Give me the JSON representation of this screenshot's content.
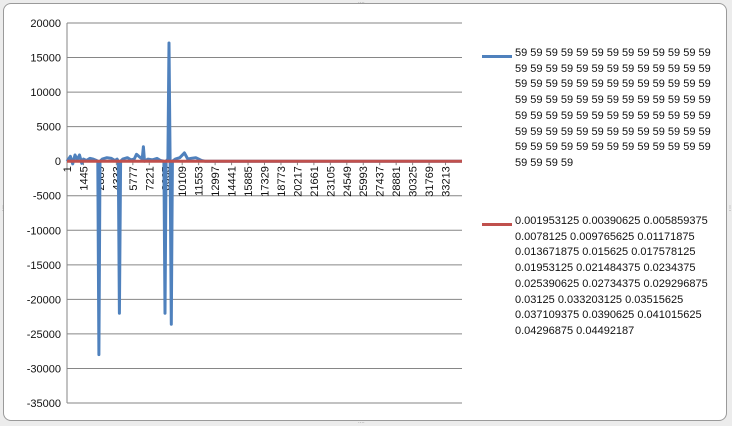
{
  "chart_data": {
    "type": "line",
    "y_ticks": [
      20000,
      15000,
      10000,
      5000,
      0,
      -5000,
      -10000,
      -15000,
      -20000,
      -25000,
      -30000,
      -35000
    ],
    "ylim": [
      -35000,
      20000
    ],
    "x_tick_labels": [
      "1",
      "1445",
      "2889",
      "4333",
      "5777",
      "7221",
      "8665",
      "10109",
      "11553",
      "12997",
      "14441",
      "15885",
      "17329",
      "18773",
      "20217",
      "21661",
      "23105",
      "24549",
      "25993",
      "27437",
      "28881",
      "30325",
      "31769",
      "33213"
    ],
    "xlim": [
      1,
      34657
    ],
    "grid": true,
    "legend_placement": "right",
    "series": [
      {
        "name": "59 59 59 59 59 59 59 59 59 59 59 59 59 59 59 59 59 59 59 59 59 59 59 59 59 59 59 59 59 59 59 59 59 59 59 59 59 59 59 59 59 59 59 59 59 59 59 59 59 59 59 59 59 59 59 59 59 59 59 59 59 59 59 59 59 59 59 59 59 59 59 59 59 59 59 59 59 59 59 59 59 59 59 59 59 59 59 59 59 59 59 59 59 59 59",
        "color": "#4f81bd",
        "points": [
          [
            1,
            0
          ],
          [
            300,
            700
          ],
          [
            500,
            -400
          ],
          [
            700,
            900
          ],
          [
            900,
            200
          ],
          [
            1100,
            900
          ],
          [
            1300,
            -300
          ],
          [
            1445,
            300
          ],
          [
            1700,
            100
          ],
          [
            2000,
            400
          ],
          [
            2300,
            300
          ],
          [
            2600,
            100
          ],
          [
            2700,
            0
          ],
          [
            2800,
            -28000
          ],
          [
            2900,
            0
          ],
          [
            3100,
            300
          ],
          [
            3500,
            500
          ],
          [
            3900,
            400
          ],
          [
            4200,
            100
          ],
          [
            4400,
            300
          ],
          [
            4500,
            0
          ],
          [
            4600,
            -22000
          ],
          [
            4700,
            0
          ],
          [
            4900,
            300
          ],
          [
            5300,
            500
          ],
          [
            5600,
            200
          ],
          [
            5900,
            300
          ],
          [
            6100,
            1000
          ],
          [
            6300,
            700
          ],
          [
            6600,
            300
          ],
          [
            6700,
            2100
          ],
          [
            6800,
            0
          ],
          [
            7100,
            300
          ],
          [
            7500,
            200
          ],
          [
            7900,
            400
          ],
          [
            8200,
            100
          ],
          [
            8500,
            0
          ],
          [
            8600,
            -22000
          ],
          [
            8700,
            0
          ],
          [
            8850,
            300
          ],
          [
            8950,
            17100
          ],
          [
            9050,
            0
          ],
          [
            9150,
            -23600
          ],
          [
            9250,
            0
          ],
          [
            9500,
            300
          ],
          [
            9900,
            500
          ],
          [
            10300,
            1200
          ],
          [
            10600,
            300
          ],
          [
            10900,
            400
          ],
          [
            11300,
            500
          ],
          [
            11553,
            300
          ],
          [
            11800,
            100
          ],
          [
            12100,
            0
          ],
          [
            34657,
            0
          ]
        ]
      },
      {
        "name": "0.001953125 0.00390625 0.005859375 0.0078125 0.009765625 0.01171875 0.013671875 0.015625 0.017578125 0.01953125 0.021484375 0.0234375 0.025390625 0.02734375 0.029296875 0.03125 0.033203125 0.03515625 0.037109375 0.0390625 0.041015625 0.04296875 0.04492187",
        "color": "#c0504d",
        "points": [
          [
            1,
            0
          ],
          [
            34657,
            0
          ]
        ]
      }
    ]
  }
}
